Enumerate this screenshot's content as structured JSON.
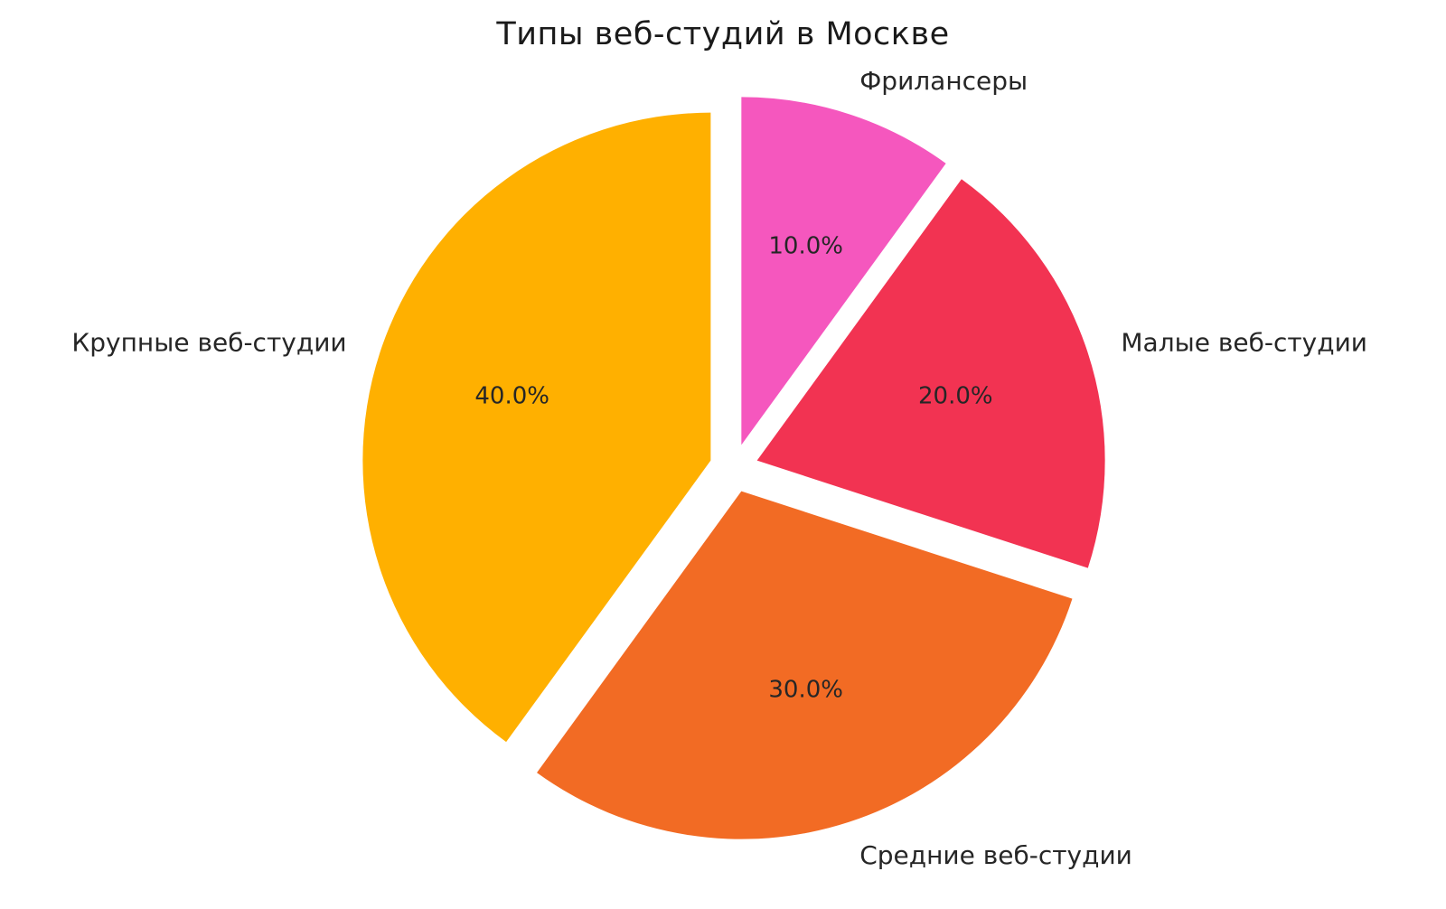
{
  "title": "Типы веб-студий в Москве",
  "chart_data": {
    "type": "pie",
    "title": "Типы веб-студий в Москве",
    "categories": [
      "Фрилансеры",
      "Малые веб-студии",
      "Средние веб-студии",
      "Крупные веб-студии"
    ],
    "values": [
      10.0,
      20.0,
      30.0,
      40.0
    ],
    "slices": [
      {
        "label": "Фрилансеры",
        "value": 10.0,
        "pct_label": "10.0%",
        "color": "#f557be"
      },
      {
        "label": "Малые веб-студии",
        "value": 20.0,
        "pct_label": "20.0%",
        "color": "#f23352"
      },
      {
        "label": "Средние веб-студии",
        "value": 30.0,
        "pct_label": "30.0%",
        "color": "#f26b24"
      },
      {
        "label": "Крупные веб-студии",
        "value": 40.0,
        "pct_label": "40.0%",
        "color": "#ffb000"
      }
    ],
    "start_angle_deg_clockwise_from_north": 0,
    "clockwise": true,
    "explode": 0.07,
    "label_distance": 1.1,
    "pct_distance": 0.6,
    "legend": "none",
    "background_color": "#ffffff",
    "text_color": "#262626"
  }
}
